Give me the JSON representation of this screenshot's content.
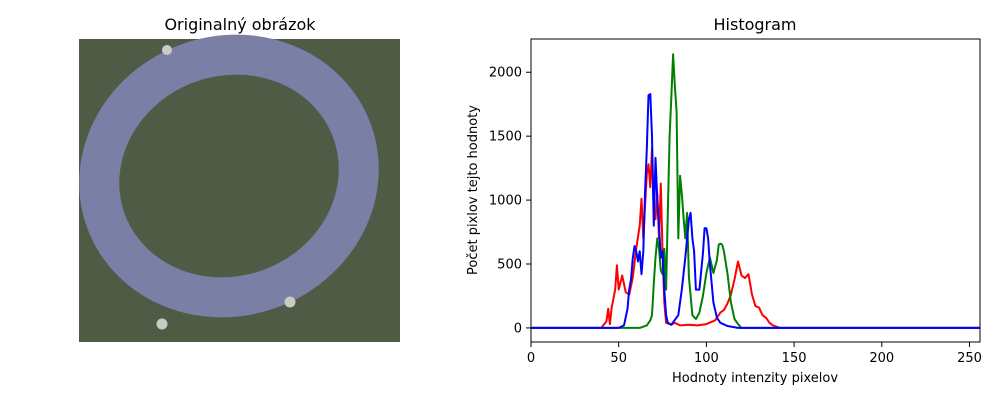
{
  "image_panel": {
    "title": "Originalný obrázok",
    "colors": {
      "background": "#4f5b44",
      "ring": "#7a80a5",
      "screw": "#c9ccc4"
    }
  },
  "chart_data": {
    "type": "line",
    "title": "Histogram",
    "xlabel": "Hodnoty intenzity pixelov",
    "ylabel": "Počet pixlov tejto hodnoty",
    "xlim": [
      0,
      256
    ],
    "ylim": [
      -110,
      2260
    ],
    "xticks": [
      0,
      50,
      100,
      150,
      200,
      250
    ],
    "yticks": [
      0,
      500,
      1000,
      1500,
      2000
    ],
    "grid": false,
    "series": [
      {
        "color": "#ff0000",
        "points": [
          [
            0,
            0
          ],
          [
            40,
            0
          ],
          [
            43,
            50
          ],
          [
            44,
            150
          ],
          [
            45,
            30
          ],
          [
            46,
            160
          ],
          [
            48,
            300
          ],
          [
            49,
            490
          ],
          [
            50,
            300
          ],
          [
            52,
            410
          ],
          [
            54,
            280
          ],
          [
            56,
            260
          ],
          [
            58,
            390
          ],
          [
            60,
            620
          ],
          [
            62,
            800
          ],
          [
            63,
            1010
          ],
          [
            64,
            700
          ],
          [
            65,
            950
          ],
          [
            66,
            1200
          ],
          [
            67,
            1280
          ],
          [
            68,
            1100
          ],
          [
            69,
            1410
          ],
          [
            70,
            900
          ],
          [
            71,
            850
          ],
          [
            72,
            1050
          ],
          [
            73,
            700
          ],
          [
            74,
            1130
          ],
          [
            75,
            600
          ],
          [
            76,
            200
          ],
          [
            77,
            40
          ],
          [
            80,
            25
          ],
          [
            82,
            40
          ],
          [
            85,
            20
          ],
          [
            90,
            25
          ],
          [
            95,
            20
          ],
          [
            100,
            30
          ],
          [
            105,
            60
          ],
          [
            108,
            120
          ],
          [
            110,
            140
          ],
          [
            112,
            190
          ],
          [
            114,
            260
          ],
          [
            116,
            380
          ],
          [
            118,
            520
          ],
          [
            120,
            410
          ],
          [
            122,
            390
          ],
          [
            124,
            420
          ],
          [
            126,
            260
          ],
          [
            128,
            170
          ],
          [
            130,
            160
          ],
          [
            132,
            100
          ],
          [
            134,
            80
          ],
          [
            136,
            40
          ],
          [
            138,
            20
          ],
          [
            142,
            0
          ],
          [
            256,
            0
          ]
        ]
      },
      {
        "color": "#008000",
        "points": [
          [
            0,
            0
          ],
          [
            44,
            0
          ],
          [
            55,
            0
          ],
          [
            62,
            0
          ],
          [
            66,
            20
          ],
          [
            68,
            60
          ],
          [
            69,
            100
          ],
          [
            70,
            350
          ],
          [
            71,
            550
          ],
          [
            72,
            700
          ],
          [
            73,
            620
          ],
          [
            74,
            450
          ],
          [
            75,
            420
          ],
          [
            76,
            620
          ],
          [
            77,
            300
          ],
          [
            78,
            900
          ],
          [
            79,
            1500
          ],
          [
            80,
            1800
          ],
          [
            81,
            2140
          ],
          [
            82,
            1900
          ],
          [
            83,
            1690
          ],
          [
            84,
            700
          ],
          [
            85,
            1190
          ],
          [
            86,
            1050
          ],
          [
            87,
            860
          ],
          [
            88,
            700
          ],
          [
            89,
            900
          ],
          [
            90,
            400
          ],
          [
            92,
            100
          ],
          [
            94,
            70
          ],
          [
            96,
            120
          ],
          [
            98,
            250
          ],
          [
            100,
            430
          ],
          [
            102,
            550
          ],
          [
            104,
            430
          ],
          [
            106,
            530
          ],
          [
            107,
            650
          ],
          [
            108,
            660
          ],
          [
            109,
            650
          ],
          [
            110,
            600
          ],
          [
            112,
            430
          ],
          [
            114,
            200
          ],
          [
            116,
            70
          ],
          [
            118,
            30
          ],
          [
            120,
            0
          ],
          [
            256,
            0
          ]
        ]
      },
      {
        "color": "#0000ff",
        "points": [
          [
            0,
            0
          ],
          [
            50,
            0
          ],
          [
            53,
            20
          ],
          [
            55,
            150
          ],
          [
            56,
            300
          ],
          [
            57,
            380
          ],
          [
            58,
            540
          ],
          [
            59,
            640
          ],
          [
            60,
            600
          ],
          [
            61,
            520
          ],
          [
            62,
            600
          ],
          [
            63,
            420
          ],
          [
            64,
            600
          ],
          [
            65,
            1050
          ],
          [
            66,
            1400
          ],
          [
            67,
            1820
          ],
          [
            68,
            1830
          ],
          [
            69,
            1500
          ],
          [
            70,
            800
          ],
          [
            71,
            1330
          ],
          [
            72,
            1000
          ],
          [
            73,
            800
          ],
          [
            74,
            550
          ],
          [
            75,
            600
          ],
          [
            76,
            300
          ],
          [
            77,
            100
          ],
          [
            78,
            40
          ],
          [
            80,
            25
          ],
          [
            84,
            100
          ],
          [
            86,
            300
          ],
          [
            88,
            550
          ],
          [
            89,
            700
          ],
          [
            90,
            850
          ],
          [
            91,
            900
          ],
          [
            92,
            700
          ],
          [
            93,
            600
          ],
          [
            94,
            300
          ],
          [
            96,
            300
          ],
          [
            98,
            580
          ],
          [
            99,
            780
          ],
          [
            100,
            780
          ],
          [
            101,
            700
          ],
          [
            102,
            500
          ],
          [
            104,
            200
          ],
          [
            106,
            80
          ],
          [
            108,
            40
          ],
          [
            112,
            15
          ],
          [
            118,
            0
          ],
          [
            256,
            0
          ]
        ]
      }
    ]
  }
}
